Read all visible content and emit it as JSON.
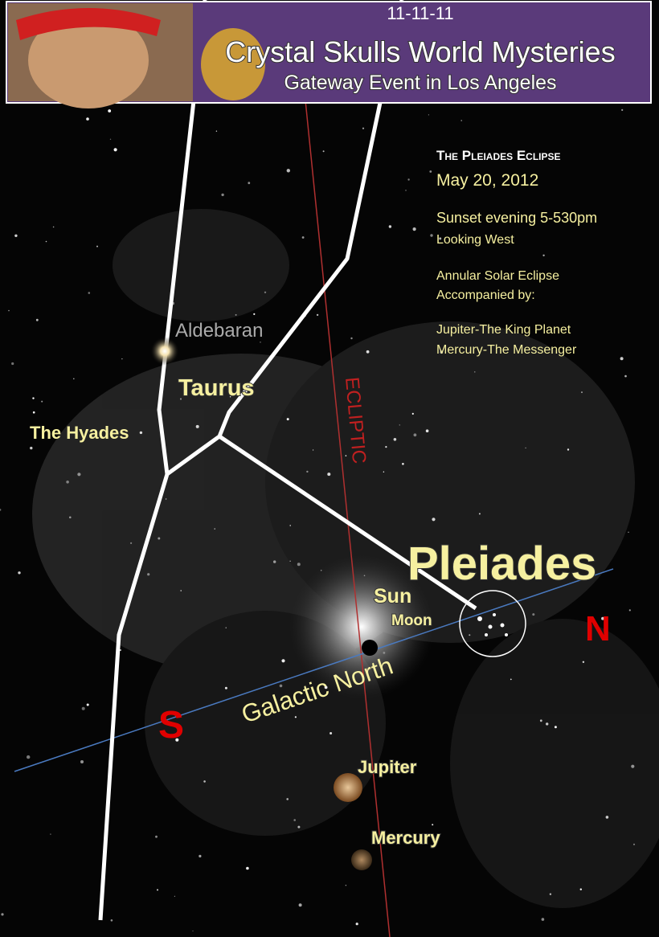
{
  "banner": {
    "date": "11-11-11",
    "title": "Crystal Skulls World Mysteries",
    "subtitle": "Gateway Event in Los Angeles"
  },
  "info": {
    "title": "The Pleiades Eclipse",
    "date": "May 20, 2012",
    "time": "Sunset evening 5-530pm",
    "direction": "Looking West",
    "event": [
      "Annular Solar Eclipse",
      "Accompanied by:"
    ],
    "planets": [
      "Jupiter-The King Planet",
      "Mercury-The Messenger"
    ]
  },
  "labels": {
    "aldebaran": "Aldebaran",
    "taurus": "Taurus",
    "hyades": "The Hyades",
    "ecliptic": "ECLIPTIC",
    "pleiades": "Pleiades",
    "sun": "Sun",
    "moon": "Moon",
    "galactic": "Galactic North",
    "north": "N",
    "south": "S",
    "jupiter": "Jupiter",
    "mercury": "Mercury"
  }
}
